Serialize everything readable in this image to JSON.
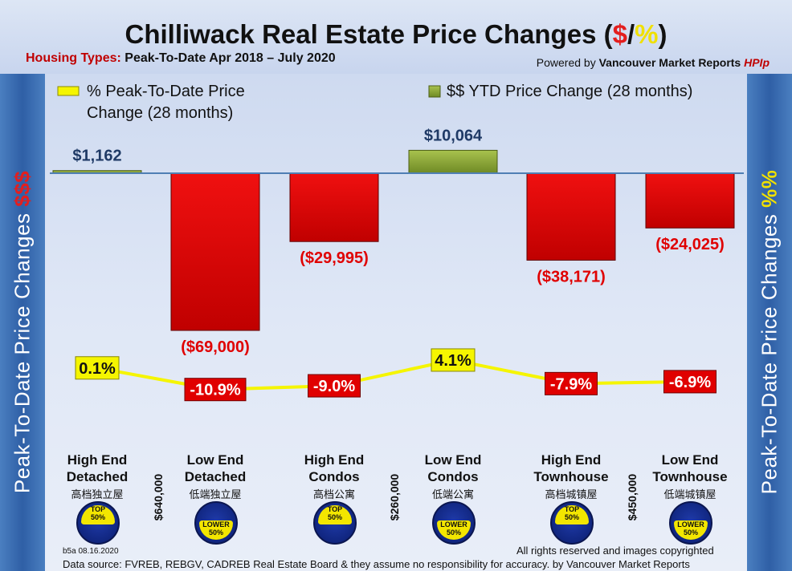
{
  "header": {
    "title_main": "Chilliwack Real Estate Price Changes (",
    "title_dollar": "$",
    "title_slash": "/",
    "title_pct": "%",
    "title_close": ")",
    "subtitle_label": "Housing Types:",
    "subtitle_text": "Peak-To-Date Apr 2018 – July 2020",
    "powered_prefix": "Powered by",
    "powered_brand": "Vancouver Market Reports",
    "powered_hpi": "HPIp"
  },
  "side": {
    "left_text": "Peak-To-Date Price Changes ",
    "left_accent": "$$$",
    "right_text": "Peak-To-Date  Price  Changes  ",
    "right_accent": "%%"
  },
  "legend": {
    "line_label_1": "% Peak-To-Date Price",
    "line_label_2": "Change (28 months)",
    "bar_label": "$$ YTD Price Change (28 months)"
  },
  "categories": [
    {
      "line1": "High End",
      "line2": "Detached",
      "cn": "高档独立屋",
      "badge": "TOP",
      "badge_pct": "50%",
      "badge_kind": "top"
    },
    {
      "line1": "Low End",
      "line2": "Detached",
      "cn": "低端独立屋",
      "badge": "LOWER",
      "badge_pct": "50%",
      "badge_kind": "lower"
    },
    {
      "line1": "High End",
      "line2": "Condos",
      "cn": "高档公寓",
      "badge": "TOP",
      "badge_pct": "50%",
      "badge_kind": "top"
    },
    {
      "line1": "Low End",
      "line2": "Condos",
      "cn": "低端公寓",
      "badge": "LOWER",
      "badge_pct": "50%",
      "badge_kind": "lower"
    },
    {
      "line1": "High End",
      "line2": "Townhouse",
      "cn": "高档城镇屋",
      "badge": "TOP",
      "badge_pct": "50%",
      "badge_kind": "top"
    },
    {
      "line1": "Low End",
      "line2": "Townhouse",
      "cn": "低端城镇屋",
      "badge": "LOWER",
      "badge_pct": "50%",
      "badge_kind": "lower"
    }
  ],
  "price_splits": [
    "$640,000",
    "$260,000",
    "$450,000"
  ],
  "chart_data": {
    "type": "bar",
    "title": "Chilliwack Real Estate Price Changes ($/%)",
    "categories": [
      "High End Detached",
      "Low End Detached",
      "High End Condos",
      "Low End Condos",
      "High End Townhouse",
      "Low End Townhouse"
    ],
    "series": [
      {
        "name": "$$ YTD Price Change (28 months)",
        "type": "bar",
        "values": [
          1162,
          -69000,
          -29995,
          10064,
          -38171,
          -24025
        ],
        "labels": [
          "$1,162",
          "($69,000)",
          "($29,995)",
          "$10,064",
          "($38,171)",
          "($24,025)"
        ],
        "colors": {
          "positive": "#8fb03c",
          "negative": "#e00000"
        }
      },
      {
        "name": "% Peak-To-Date Price Change (28 months)",
        "type": "line",
        "values": [
          0.1,
          -10.9,
          -9.0,
          4.1,
          -7.9,
          -6.9
        ],
        "labels": [
          "0.1%",
          "-10.9%",
          "-9.0%",
          "4.1%",
          "-7.9%",
          "-6.9%"
        ],
        "color": "#f5f500"
      }
    ],
    "ylim_dollars": [
      -75000,
      15000
    ],
    "ylim_percent": [
      -20,
      20
    ]
  },
  "footer": {
    "date": "b5a 08.16.2020",
    "rights": "All rights reserved and  images copyrighted",
    "source": "Data source: FVREB, REBGV, CADREB Real Estate Board & they assume no responsibility for accuracy. by Vancouver Market Reports"
  }
}
